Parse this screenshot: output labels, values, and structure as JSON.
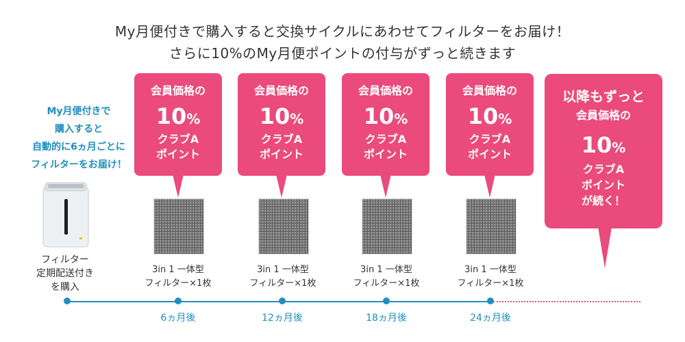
{
  "header": {
    "line1": "My月便付きで購入すると交換サイクルにあわせてフィルターをお届け！",
    "line2": "さらに10%のMy月便ポイントの付与がずっと続きます"
  },
  "intro": [
    "My月便付きで",
    "購入すると",
    "自動的に6ヵ月ごとに",
    "フィルターをお届け！"
  ],
  "purifier_caption": [
    "フィルター",
    "定期配送付き",
    "を購入"
  ],
  "bubble": {
    "line1": "会員価格の",
    "pct_num": "10",
    "pct_sign": "%",
    "line3": "クラブA",
    "line4": "ポイント"
  },
  "final_bubble": {
    "head": "以降もずっと",
    "line1": "会員価格の",
    "pct_num": "10",
    "pct_sign": "%",
    "line3": "クラブA",
    "line4": "ポイント",
    "line5": "が続く！"
  },
  "filter_caption": [
    "3in 1 一体型",
    "フィルター×1枚"
  ],
  "timeline": [
    "6ヵ月後",
    "12ヵ月後",
    "18ヵ月後",
    "24ヵ月後"
  ],
  "colors": {
    "pink": "#ea4a7c",
    "blue": "#1f8fbf"
  }
}
